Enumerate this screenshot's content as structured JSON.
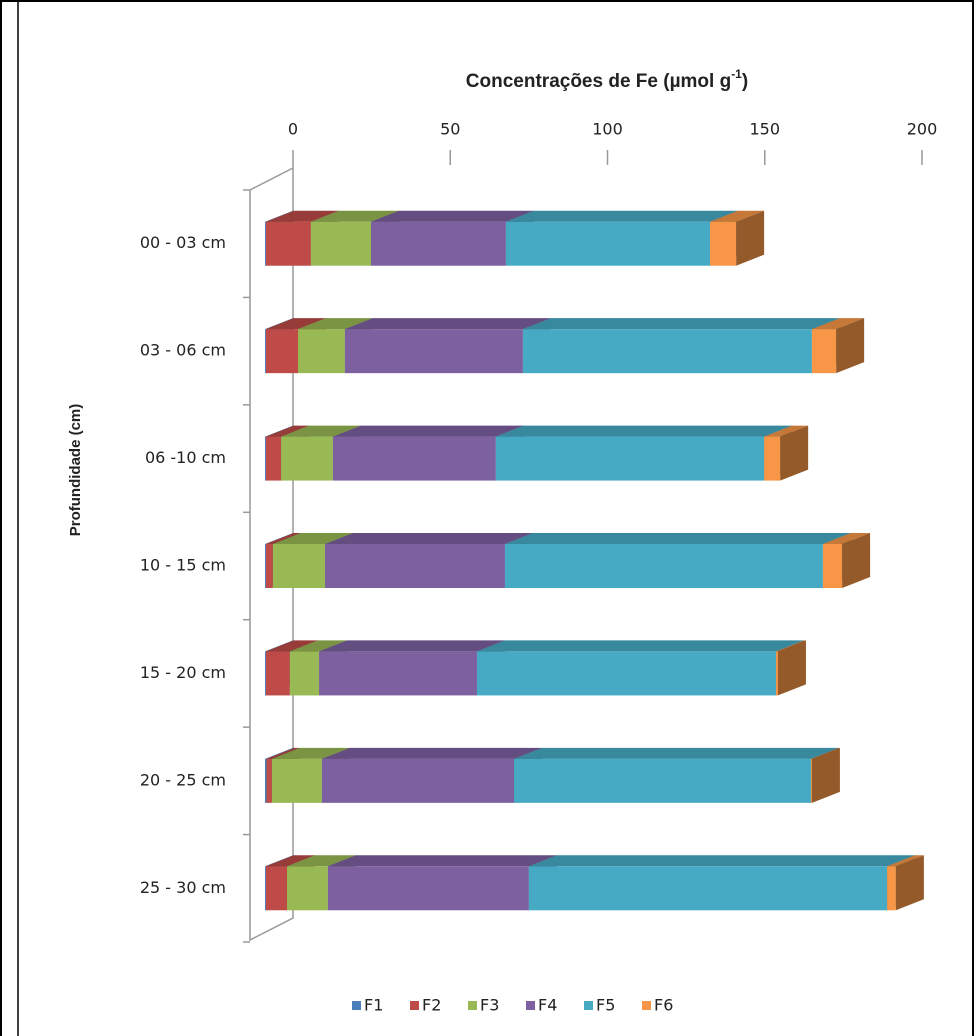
{
  "chart_data": {
    "type": "bar3d_stacked_horizontal",
    "title": "Concentrações de Fe (µmol g",
    "title_superscript": "-1",
    "title_suffix": ")",
    "y_axis_label": "Profundidade (cm)",
    "categories": [
      "00 - 03 cm",
      "03 - 06 cm",
      "06 -10 cm",
      "10 - 15 cm",
      "15 - 20 cm",
      "20 - 25 cm",
      "25 - 30 cm"
    ],
    "series": [
      {
        "name": "F1",
        "color": "#4a7ebb",
        "values": [
          0.3,
          0.3,
          0.3,
          0.3,
          0.3,
          0.5,
          0.3
        ]
      },
      {
        "name": "F2",
        "color": "#be4b48",
        "values": [
          14.3,
          10.2,
          4.8,
          2.2,
          7.6,
          1.7,
          6.7
        ]
      },
      {
        "name": "F3",
        "color": "#98b954",
        "values": [
          19.1,
          14.9,
          16.5,
          16.6,
          9.3,
          15.9,
          13.0
        ]
      },
      {
        "name": "F4",
        "color": "#7d60a0",
        "values": [
          42.9,
          56.6,
          51.8,
          57.2,
          50.2,
          61.1,
          63.9
        ]
      },
      {
        "name": "F5",
        "color": "#46aac5",
        "values": [
          64.9,
          91.9,
          85.3,
          101.1,
          95.1,
          94.4,
          113.9
        ]
      },
      {
        "name": "F6",
        "color": "#f79646",
        "values": [
          8.3,
          7.7,
          5.1,
          6.1,
          0.6,
          0.3,
          2.8
        ]
      }
    ],
    "xlim": [
      0,
      200
    ],
    "xticks": [
      0,
      50,
      100,
      150,
      200
    ],
    "legend": "bottom"
  }
}
